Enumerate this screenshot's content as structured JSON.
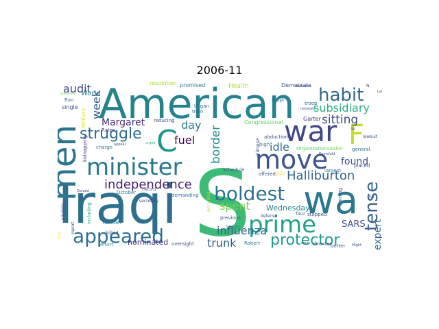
{
  "title": "2006-11",
  "words": [
    {
      "text": "Iraqi",
      "color": "#2d708e"
    },
    {
      "text": "S",
      "color": "#3bbb75"
    },
    {
      "text": "American",
      "color": "#25838e"
    },
    {
      "text": "wa",
      "color": "#2a788e"
    },
    {
      "text": "war",
      "color": "#3f4788"
    },
    {
      "text": "men",
      "color": "#2b758e"
    },
    {
      "text": "minister",
      "color": "#2a788e"
    },
    {
      "text": "move",
      "color": "#3a548c"
    },
    {
      "text": "prime",
      "color": "#20a386"
    },
    {
      "text": "C",
      "color": "#1f968b"
    },
    {
      "text": "F",
      "color": "#c2df23"
    },
    {
      "text": "boldest",
      "color": "#2c728e"
    },
    {
      "text": "habit",
      "color": "#31688e"
    },
    {
      "text": "appeared",
      "color": "#2c718e"
    },
    {
      "text": "tense",
      "color": "#355f8d"
    },
    {
      "text": "independence",
      "color": "#481f70"
    },
    {
      "text": "struggle",
      "color": "#2e6e8e"
    },
    {
      "text": "Halliburton",
      "color": "#33638d"
    },
    {
      "text": "protector",
      "color": "#1f9a8a"
    },
    {
      "text": "subsidiary",
      "color": "#29af7f"
    },
    {
      "text": "influenza",
      "color": "#33638d"
    },
    {
      "text": "sitting",
      "color": "#3e4c8a"
    },
    {
      "text": "fuel",
      "color": "#440154"
    },
    {
      "text": "idle",
      "color": "#2d708e"
    },
    {
      "text": "found",
      "color": "#3b528b"
    },
    {
      "text": "spent",
      "color": "#7ad151"
    },
    {
      "text": "week",
      "color": "#355e8d"
    },
    {
      "text": "border",
      "color": "#21918c"
    },
    {
      "text": "Margaret",
      "color": "#472d7b"
    },
    {
      "text": "audit",
      "color": "#3f4889"
    },
    {
      "text": "day",
      "color": "#2a788e"
    },
    {
      "text": "trunk",
      "color": "#33638d"
    },
    {
      "text": "nominated",
      "color": "#46307e"
    },
    {
      "text": "SARS",
      "color": "#3e4a89"
    },
    {
      "text": "often",
      "color": "#b5de2b"
    },
    {
      "text": "expert",
      "color": "#31688e"
    },
    {
      "text": "Wednesday",
      "color": "#26828e"
    },
    {
      "text": "World",
      "color": "#26828e"
    },
    {
      "text": "resolution",
      "color": "#a8db34"
    },
    {
      "text": "promised",
      "color": "#2a788e"
    },
    {
      "text": "Health",
      "color": "#addc30"
    },
    {
      "text": "Democrats",
      "color": "#3b528b"
    },
    {
      "text": "Congressional",
      "color": "#5ec962"
    },
    {
      "text": "Garter",
      "color": "#443983"
    },
    {
      "text": "reducing",
      "color": "#3e4989"
    },
    {
      "text": "train",
      "color": "#31688e"
    },
    {
      "text": "began",
      "color": "#2a788e"
    },
    {
      "text": "Iraqâ",
      "color": "#31688e"
    },
    {
      "text": "troop",
      "color": "#31688e"
    },
    {
      "text": "military",
      "color": "#dde318"
    },
    {
      "text": "Ran",
      "color": "#2d708e"
    },
    {
      "text": "single",
      "color": "#3b528b"
    },
    {
      "text": "Rates",
      "color": "#46307e"
    },
    {
      "text": "charge",
      "color": "#2a788e"
    },
    {
      "text": "urged",
      "color": "#35b779"
    },
    {
      "text": "kidnapping",
      "color": "#482878"
    },
    {
      "text": "October",
      "color": "#2a788e"
    },
    {
      "text": "demanding",
      "color": "#2e6e8e"
    },
    {
      "text": "record",
      "color": "#3b528b"
    },
    {
      "text": "secretary",
      "color": "#414487"
    },
    {
      "text": "Donald",
      "color": "#424086"
    },
    {
      "text": "slightly",
      "color": "#3b528b"
    },
    {
      "text": "including",
      "color": "#20a486"
    },
    {
      "text": "number",
      "color": "#2a788e"
    },
    {
      "text": "killed",
      "color": "#3b528b"
    },
    {
      "text": "effort",
      "color": "#21918c"
    },
    {
      "text": "oversight",
      "color": "#3b528b"
    },
    {
      "text": "report",
      "color": "#3b528b"
    },
    {
      "text": "five",
      "color": "#fde725"
    },
    {
      "text": "According",
      "color": "#bddf26"
    },
    {
      "text": "previous",
      "color": "#3b528b"
    },
    {
      "text": "German",
      "color": "#2a788e"
    },
    {
      "text": "defense",
      "color": "#3b528b"
    },
    {
      "text": "four",
      "color": "#3b528b"
    },
    {
      "text": "stepped",
      "color": "#3b528b"
    },
    {
      "text": "training",
      "color": "#3b528b"
    },
    {
      "text": "placed",
      "color": "#3b528b"
    },
    {
      "text": "largest",
      "color": "#2a788e"
    },
    {
      "text": "July",
      "color": "#fde725"
    },
    {
      "text": "offered",
      "color": "#3b528b"
    },
    {
      "text": "abduction",
      "color": "#3b528b"
    },
    {
      "text": "high",
      "color": "#2a788e"
    },
    {
      "text": "schedule",
      "color": "#3b528b"
    },
    {
      "text": "glimpse",
      "color": "#3b528b"
    },
    {
      "text": "Rumsfeld",
      "color": "#3b528b"
    },
    {
      "text": "Organization",
      "color": "#5ec962"
    },
    {
      "text": "soldier",
      "color": "#7ad151"
    },
    {
      "text": "general",
      "color": "#2a788e"
    },
    {
      "text": "reinstate",
      "color": "#3b528b"
    },
    {
      "text": "lawsuit",
      "color": "#3b528b"
    },
    {
      "text": "abducted",
      "color": "#3b528b"
    },
    {
      "text": "Lawyer",
      "color": "#3b528b"
    },
    {
      "text": "ha",
      "color": "#3b528b"
    },
    {
      "text": "Robert",
      "color": "#2a788e"
    },
    {
      "text": "court",
      "color": "#3b528b"
    },
    {
      "text": "director",
      "color": "#3b528b"
    },
    {
      "text": "better",
      "color": "#3b528b"
    },
    {
      "text": "Might",
      "color": "#3b528b"
    },
    {
      "text": "distance",
      "color": "#7ad151"
    },
    {
      "text": "appeal",
      "color": "#3b528b"
    },
    {
      "text": "N",
      "color": "#3b528b"
    },
    {
      "text": "M",
      "color": "#3b528b"
    },
    {
      "text": "u",
      "color": "#3b528b"
    }
  ]
}
